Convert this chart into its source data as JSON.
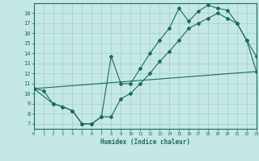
{
  "title": "",
  "xlabel": "Humidex (Indice chaleur)",
  "xlim": [
    0,
    23
  ],
  "ylim": [
    6.5,
    19.0
  ],
  "yticks": [
    7,
    8,
    9,
    10,
    11,
    12,
    13,
    14,
    15,
    16,
    17,
    18
  ],
  "xticks": [
    0,
    1,
    2,
    3,
    4,
    5,
    6,
    7,
    8,
    9,
    10,
    11,
    12,
    13,
    14,
    15,
    16,
    17,
    18,
    19,
    20,
    21,
    22,
    23
  ],
  "bg_color": "#c5e8e5",
  "line_color": "#1a6b5a",
  "grid_color": "#9fcfca",
  "line1_x": [
    0,
    1,
    2,
    3,
    4,
    5,
    6,
    7,
    8,
    9,
    10,
    11,
    12,
    13,
    14,
    15,
    16,
    17,
    18,
    19,
    20,
    21,
    22,
    23
  ],
  "line1_y": [
    10.5,
    10.3,
    9.0,
    8.7,
    8.3,
    7.0,
    7.0,
    7.7,
    13.7,
    11.0,
    11.0,
    12.5,
    14.0,
    15.3,
    16.5,
    18.5,
    17.2,
    18.2,
    18.8,
    18.5,
    18.3,
    17.0,
    15.3,
    13.7
  ],
  "line2_x": [
    0,
    2,
    3,
    4,
    5,
    6,
    7,
    8,
    9,
    10,
    11,
    12,
    13,
    14,
    15,
    16,
    17,
    18,
    19,
    20,
    21,
    22,
    23
  ],
  "line2_y": [
    10.5,
    9.0,
    8.7,
    8.3,
    7.0,
    7.0,
    7.7,
    7.7,
    9.5,
    10.0,
    11.0,
    12.0,
    13.2,
    14.2,
    15.3,
    16.5,
    17.0,
    17.5,
    18.0,
    17.5,
    17.0,
    15.3,
    12.2
  ],
  "line3_x": [
    0,
    23
  ],
  "line3_y": [
    10.5,
    12.2
  ]
}
